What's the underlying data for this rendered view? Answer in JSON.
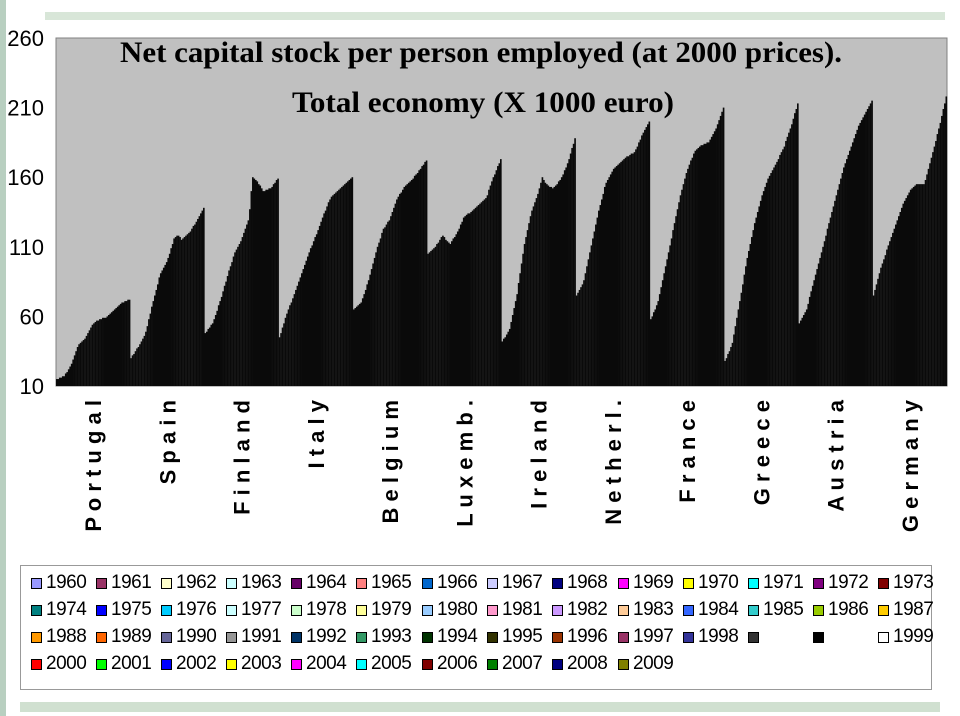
{
  "chart_data": {
    "type": "bar",
    "title_line1": "Net capital stock per person employed (at 2000 prices).",
    "title_line2": "Total economy (X 1000 euro)",
    "xlabel": "",
    "ylabel": "",
    "ylim": [
      10,
      260
    ],
    "yticks": [
      "260",
      "210",
      "160",
      "110",
      "60",
      "10"
    ],
    "plot_bg": "#c0c0c0",
    "bar_color": "#0a0a0a",
    "countries": [
      {
        "name": "Portugal",
        "label": "P o r t u g a l",
        "shape": [
          [
            0,
            15
          ],
          [
            0.1,
            17
          ],
          [
            0.2,
            25
          ],
          [
            0.3,
            40
          ],
          [
            0.4,
            45
          ],
          [
            0.5,
            55
          ],
          [
            0.6,
            58
          ],
          [
            0.7,
            60
          ],
          [
            0.8,
            65
          ],
          [
            0.9,
            70
          ],
          [
            1.0,
            72
          ]
        ]
      },
      {
        "name": "Spain",
        "label": "S p a i n",
        "shape": [
          [
            0,
            30
          ],
          [
            0.1,
            38
          ],
          [
            0.2,
            48
          ],
          [
            0.3,
            70
          ],
          [
            0.4,
            90
          ],
          [
            0.5,
            100
          ],
          [
            0.6,
            117
          ],
          [
            0.65,
            118
          ],
          [
            0.7,
            115
          ],
          [
            0.8,
            120
          ],
          [
            0.9,
            128
          ],
          [
            1.0,
            138
          ]
        ]
      },
      {
        "name": "Finland",
        "label": "F i n l a n d",
        "shape": [
          [
            0,
            48
          ],
          [
            0.1,
            55
          ],
          [
            0.2,
            70
          ],
          [
            0.3,
            88
          ],
          [
            0.4,
            105
          ],
          [
            0.5,
            115
          ],
          [
            0.6,
            130
          ],
          [
            0.65,
            160
          ],
          [
            0.7,
            158
          ],
          [
            0.8,
            150
          ],
          [
            0.9,
            152
          ],
          [
            1.0,
            159
          ]
        ]
      },
      {
        "name": "Italy",
        "label": "I t a l y",
        "shape": [
          [
            0,
            45
          ],
          [
            0.1,
            62
          ],
          [
            0.2,
            75
          ],
          [
            0.3,
            90
          ],
          [
            0.4,
            105
          ],
          [
            0.5,
            118
          ],
          [
            0.6,
            132
          ],
          [
            0.7,
            145
          ],
          [
            0.8,
            150
          ],
          [
            0.9,
            155
          ],
          [
            1.0,
            160
          ]
        ]
      },
      {
        "name": "Belgium",
        "label": "B e l g i u m",
        "shape": [
          [
            0,
            65
          ],
          [
            0.1,
            70
          ],
          [
            0.2,
            85
          ],
          [
            0.3,
            105
          ],
          [
            0.4,
            122
          ],
          [
            0.5,
            130
          ],
          [
            0.6,
            145
          ],
          [
            0.7,
            153
          ],
          [
            0.8,
            158
          ],
          [
            0.9,
            165
          ],
          [
            1.0,
            172
          ]
        ]
      },
      {
        "name": "Luxemb.",
        "label": "L u x e m b .",
        "shape": [
          [
            0,
            105
          ],
          [
            0.1,
            110
          ],
          [
            0.2,
            118
          ],
          [
            0.3,
            112
          ],
          [
            0.4,
            120
          ],
          [
            0.5,
            132
          ],
          [
            0.6,
            135
          ],
          [
            0.7,
            140
          ],
          [
            0.8,
            145
          ],
          [
            0.9,
            160
          ],
          [
            1.0,
            173
          ]
        ]
      },
      {
        "name": "Ireland",
        "label": "I r e l a n d",
        "shape": [
          [
            0,
            42
          ],
          [
            0.1,
            50
          ],
          [
            0.2,
            75
          ],
          [
            0.3,
            110
          ],
          [
            0.4,
            135
          ],
          [
            0.5,
            150
          ],
          [
            0.55,
            160
          ],
          [
            0.6,
            155
          ],
          [
            0.7,
            152
          ],
          [
            0.8,
            158
          ],
          [
            0.9,
            170
          ],
          [
            1.0,
            188
          ]
        ]
      },
      {
        "name": "Netherl.",
        "label": "N e t h e r l .",
        "shape": [
          [
            0,
            75
          ],
          [
            0.1,
            85
          ],
          [
            0.2,
            110
          ],
          [
            0.3,
            135
          ],
          [
            0.4,
            155
          ],
          [
            0.5,
            165
          ],
          [
            0.6,
            170
          ],
          [
            0.7,
            175
          ],
          [
            0.8,
            178
          ],
          [
            0.9,
            190
          ],
          [
            1.0,
            200
          ]
        ]
      },
      {
        "name": "France",
        "label": "F r a n c e",
        "shape": [
          [
            0,
            58
          ],
          [
            0.1,
            70
          ],
          [
            0.2,
            95
          ],
          [
            0.3,
            120
          ],
          [
            0.4,
            145
          ],
          [
            0.5,
            165
          ],
          [
            0.6,
            178
          ],
          [
            0.7,
            183
          ],
          [
            0.8,
            185
          ],
          [
            0.9,
            195
          ],
          [
            1.0,
            210
          ]
        ]
      },
      {
        "name": "Greece",
        "label": "G r e e c e",
        "shape": [
          [
            0,
            28
          ],
          [
            0.1,
            40
          ],
          [
            0.2,
            70
          ],
          [
            0.3,
            100
          ],
          [
            0.4,
            125
          ],
          [
            0.5,
            145
          ],
          [
            0.6,
            160
          ],
          [
            0.7,
            170
          ],
          [
            0.8,
            180
          ],
          [
            0.9,
            195
          ],
          [
            1.0,
            213
          ]
        ]
      },
      {
        "name": "Austria",
        "label": "A u s t r i a",
        "shape": [
          [
            0,
            55
          ],
          [
            0.1,
            65
          ],
          [
            0.2,
            85
          ],
          [
            0.3,
            105
          ],
          [
            0.4,
            125
          ],
          [
            0.5,
            145
          ],
          [
            0.6,
            165
          ],
          [
            0.7,
            180
          ],
          [
            0.8,
            195
          ],
          [
            0.9,
            205
          ],
          [
            1.0,
            215
          ]
        ]
      },
      {
        "name": "Germany",
        "label": "G e r m a n y",
        "shape": [
          [
            0,
            75
          ],
          [
            0.1,
            95
          ],
          [
            0.2,
            110
          ],
          [
            0.3,
            125
          ],
          [
            0.4,
            140
          ],
          [
            0.5,
            150
          ],
          [
            0.6,
            155
          ],
          [
            0.7,
            155
          ],
          [
            0.8,
            175
          ],
          [
            0.9,
            195
          ],
          [
            1.0,
            218
          ]
        ]
      }
    ],
    "legend": {
      "rows": [
        [
          {
            "label": "1960",
            "color": "#9999ff"
          },
          {
            "label": "1961",
            "color": "#993366"
          },
          {
            "label": "1962",
            "color": "#ffffcc"
          },
          {
            "label": "1963",
            "color": "#ccffff"
          },
          {
            "label": "1964",
            "color": "#660066"
          },
          {
            "label": "1965",
            "color": "#ff8080"
          },
          {
            "label": "1966",
            "color": "#0066cc"
          },
          {
            "label": "1967",
            "color": "#ccccff"
          },
          {
            "label": "1968",
            "color": "#000080"
          },
          {
            "label": "1969",
            "color": "#ff00ff"
          },
          {
            "label": "1970",
            "color": "#ffff00"
          },
          {
            "label": "1971",
            "color": "#00ffff"
          },
          {
            "label": "1972",
            "color": "#800080"
          },
          {
            "label": "1973",
            "color": "#800000"
          }
        ],
        [
          {
            "label": "1974",
            "color": "#008080"
          },
          {
            "label": "1975",
            "color": "#0000ff"
          },
          {
            "label": "1976",
            "color": "#00ccff"
          },
          {
            "label": "1977",
            "color": "#ccffff"
          },
          {
            "label": "1978",
            "color": "#ccffcc"
          },
          {
            "label": "1979",
            "color": "#ffff99"
          },
          {
            "label": "1980",
            "color": "#99ccff"
          },
          {
            "label": "1981",
            "color": "#ff99cc"
          },
          {
            "label": "1982",
            "color": "#cc99ff"
          },
          {
            "label": "1983",
            "color": "#ffcc99"
          },
          {
            "label": "1984",
            "color": "#3366ff"
          },
          {
            "label": "1985",
            "color": "#33cccc"
          },
          {
            "label": "1986",
            "color": "#99cc00"
          },
          {
            "label": "1987",
            "color": "#ffcc00"
          }
        ],
        [
          {
            "label": "1988",
            "color": "#ff9900"
          },
          {
            "label": "1989",
            "color": "#ff6600"
          },
          {
            "label": "1990",
            "color": "#666699"
          },
          {
            "label": "1991",
            "color": "#969696"
          },
          {
            "label": "1992",
            "color": "#003366"
          },
          {
            "label": "1993",
            "color": "#339966"
          },
          {
            "label": "1994",
            "color": "#003300"
          },
          {
            "label": "1995",
            "color": "#333300"
          },
          {
            "label": "1996",
            "color": "#993300"
          },
          {
            "label": "1997",
            "color": "#993366"
          },
          {
            "label": "1998",
            "color": "#333399"
          },
          {
            "label": "",
            "color": "#333333"
          },
          {
            "label": "",
            "color": "#000000"
          },
          {
            "label": "1999",
            "color": "#ffffff"
          }
        ],
        [
          {
            "label": "2000",
            "color": "#ff0000"
          },
          {
            "label": "2001",
            "color": "#00ff00"
          },
          {
            "label": "2002",
            "color": "#0000ff"
          },
          {
            "label": "2003",
            "color": "#ffff00"
          },
          {
            "label": "2004",
            "color": "#ff00ff"
          },
          {
            "label": "2005",
            "color": "#00ffff"
          },
          {
            "label": "2006",
            "color": "#800000"
          },
          {
            "label": "2007",
            "color": "#008000"
          },
          {
            "label": "2008",
            "color": "#000080"
          },
          {
            "label": "2009",
            "color": "#808000"
          }
        ]
      ]
    }
  }
}
